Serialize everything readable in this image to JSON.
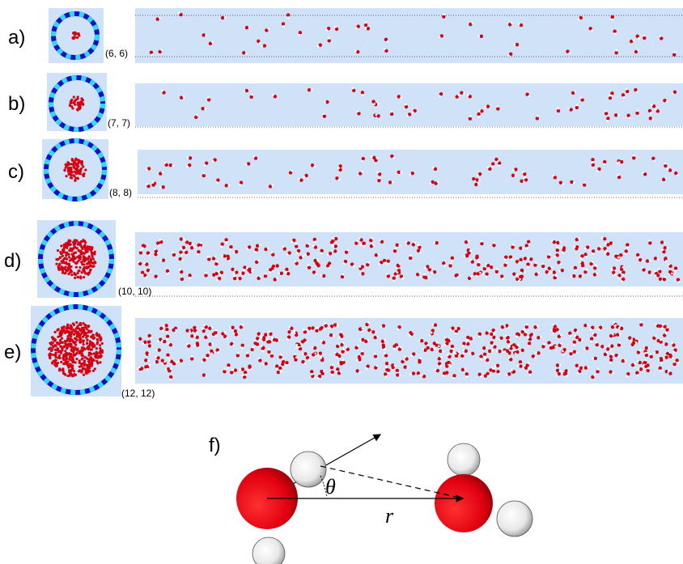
{
  "panels": [
    {
      "label": "a)",
      "tube": "(6, 6)"
    },
    {
      "label": "b)",
      "tube": "(7, 7)"
    },
    {
      "label": "c)",
      "tube": "(8, 8)"
    },
    {
      "label": "d)",
      "tube": "(10, 10)"
    },
    {
      "label": "e)",
      "tube": "(12, 12)"
    }
  ],
  "molecule_panel": {
    "label": "f)",
    "angle": "θ",
    "distance": "r"
  }
}
